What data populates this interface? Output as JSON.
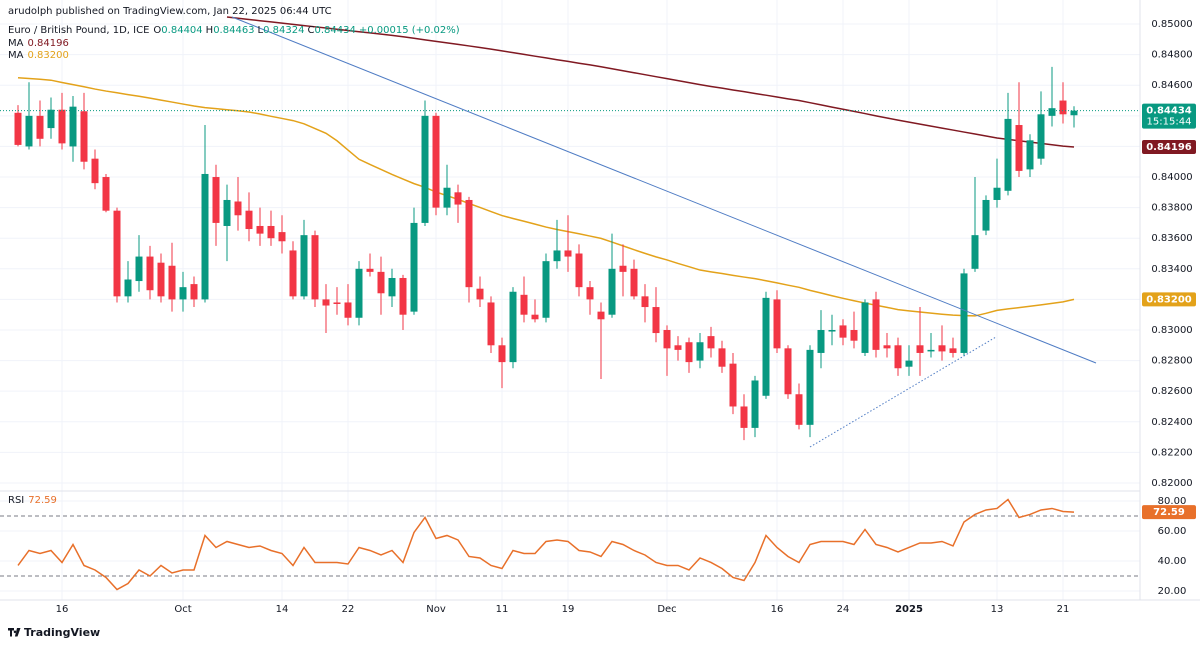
{
  "chart_data": {
    "type": "candlestick",
    "header": "arudolph published on TradingView.com, Jan 22, 2025 06:44 UTC",
    "title": "Euro / British Pound, 1D, ICE",
    "ohlc_keys": [
      "O",
      "H",
      "L",
      "C"
    ],
    "change": "+0.00015 (+0.02%)",
    "countdown": "15:15:44",
    "footer": "TradingView",
    "up_color": "#089981",
    "down_color": "#f23645",
    "grid": true,
    "categories": [
      null,
      null,
      null,
      null,
      "16",
      null,
      null,
      null,
      null,
      null,
      null,
      null,
      null,
      null,
      null,
      "Oct",
      null,
      null,
      null,
      null,
      null,
      null,
      null,
      null,
      "14",
      null,
      null,
      null,
      null,
      null,
      "22",
      null,
      null,
      null,
      null,
      null,
      null,
      null,
      "Nov",
      null,
      null,
      null,
      null,
      null,
      "11",
      null,
      null,
      null,
      null,
      null,
      "19",
      null,
      null,
      null,
      null,
      null,
      null,
      null,
      null,
      "Dec",
      null,
      null,
      null,
      null,
      null,
      null,
      null,
      null,
      null,
      "16",
      null,
      null,
      null,
      null,
      null,
      "24",
      null,
      null,
      null,
      null,
      null,
      "2025",
      null,
      null,
      null,
      null,
      null,
      null,
      null,
      "13",
      null,
      null,
      null,
      null,
      null,
      "21",
      null
    ],
    "open": [
      0.8442,
      0.842,
      0.844,
      0.8432,
      0.8444,
      0.842,
      0.8443,
      0.8412,
      0.84,
      0.8378,
      0.8322,
      0.8332,
      0.8348,
      0.8344,
      0.8342,
      0.832,
      0.833,
      0.832,
      0.84,
      0.8368,
      0.8384,
      0.8378,
      0.8368,
      0.8368,
      0.8364,
      0.8352,
      0.8322,
      0.8362,
      0.832,
      0.8318,
      0.8318,
      0.8308,
      0.834,
      0.8338,
      0.8322,
      0.8334,
      0.8312,
      0.837,
      0.844,
      0.838,
      0.839,
      0.8385,
      0.8327,
      0.8318,
      0.829,
      0.8279,
      0.8323,
      0.831,
      0.8308,
      0.8345,
      0.8352,
      0.835,
      0.8328,
      0.8312,
      0.831,
      0.8342,
      0.834,
      0.8322,
      0.8315,
      0.83,
      0.829,
      0.8292,
      0.828,
      0.8296,
      0.8288,
      0.8278,
      0.825,
      0.8236,
      0.8257,
      0.832,
      0.8288,
      0.8258,
      0.8238,
      0.8285,
      0.8299,
      0.8303,
      0.83,
      0.8285,
      0.832,
      0.829,
      0.829,
      0.8276,
      0.829,
      0.8286,
      0.829,
      0.8288,
      0.8285,
      0.834,
      0.8365,
      0.8385,
      0.8391,
      0.8434,
      0.8405,
      0.8412,
      0.844,
      0.845,
      0.84404
    ],
    "high": [
      0.8447,
      0.8462,
      0.845,
      0.8452,
      0.8455,
      0.8453,
      0.8455,
      0.8418,
      0.8402,
      0.838,
      0.8345,
      0.8362,
      0.8355,
      0.835,
      0.8357,
      0.8338,
      0.8335,
      0.8434,
      0.8408,
      0.8395,
      0.84,
      0.839,
      0.838,
      0.8378,
      0.8375,
      0.8358,
      0.8372,
      0.8365,
      0.833,
      0.8328,
      0.833,
      0.8345,
      0.835,
      0.8348,
      0.834,
      0.8336,
      0.838,
      0.845,
      0.8442,
      0.8408,
      0.8395,
      0.8387,
      0.8335,
      0.8322,
      0.8295,
      0.8328,
      0.8335,
      0.832,
      0.835,
      0.8372,
      0.8375,
      0.8356,
      0.8332,
      0.8318,
      0.8363,
      0.8356,
      0.8346,
      0.833,
      0.8328,
      0.8303,
      0.8296,
      0.8295,
      0.8298,
      0.8302,
      0.8293,
      0.8285,
      0.8258,
      0.827,
      0.8325,
      0.8326,
      0.829,
      0.8265,
      0.829,
      0.8313,
      0.831,
      0.8307,
      0.8312,
      0.832,
      0.8325,
      0.8298,
      0.8295,
      0.829,
      0.8315,
      0.8298,
      0.8303,
      0.8295,
      0.834,
      0.84,
      0.8388,
      0.8412,
      0.8455,
      0.8462,
      0.8428,
      0.8456,
      0.8472,
      0.8462,
      0.84463
    ],
    "low": [
      0.842,
      0.8418,
      0.842,
      0.8425,
      0.8418,
      0.841,
      0.8405,
      0.8392,
      0.8377,
      0.8318,
      0.8318,
      0.8325,
      0.832,
      0.8318,
      0.8312,
      0.8312,
      0.8315,
      0.8318,
      0.8355,
      0.8345,
      0.8365,
      0.8358,
      0.8355,
      0.8355,
      0.835,
      0.832,
      0.832,
      0.8315,
      0.8298,
      0.831,
      0.8303,
      0.8303,
      0.8335,
      0.831,
      0.8315,
      0.83,
      0.831,
      0.8368,
      0.8375,
      0.8375,
      0.837,
      0.8318,
      0.8315,
      0.8285,
      0.8262,
      0.8275,
      0.8305,
      0.8305,
      0.8305,
      0.834,
      0.8338,
      0.8322,
      0.831,
      0.8268,
      0.8308,
      0.8322,
      0.832,
      0.8305,
      0.8292,
      0.827,
      0.828,
      0.8272,
      0.8275,
      0.8282,
      0.8272,
      0.8245,
      0.8228,
      0.823,
      0.8255,
      0.8285,
      0.8255,
      0.8235,
      0.823,
      0.8275,
      0.829,
      0.829,
      0.8288,
      0.8283,
      0.8282,
      0.8282,
      0.827,
      0.827,
      0.827,
      0.8282,
      0.828,
      0.8282,
      0.8283,
      0.8338,
      0.8362,
      0.838,
      0.8388,
      0.84,
      0.84,
      0.8408,
      0.8433,
      0.8435,
      0.84324
    ],
    "close": [
      0.8421,
      0.844,
      0.8425,
      0.8444,
      0.8422,
      0.8446,
      0.841,
      0.8396,
      0.8378,
      0.8322,
      0.8333,
      0.8348,
      0.8326,
      0.8322,
      0.832,
      0.8328,
      0.832,
      0.8402,
      0.837,
      0.8385,
      0.8375,
      0.8366,
      0.8363,
      0.836,
      0.8358,
      0.8322,
      0.8362,
      0.832,
      0.8316,
      0.8317,
      0.8308,
      0.834,
      0.8338,
      0.8324,
      0.8334,
      0.831,
      0.837,
      0.844,
      0.838,
      0.8393,
      0.8382,
      0.8328,
      0.832,
      0.829,
      0.8279,
      0.8325,
      0.831,
      0.8307,
      0.8345,
      0.8352,
      0.8348,
      0.8328,
      0.832,
      0.8307,
      0.834,
      0.8338,
      0.8322,
      0.8315,
      0.8298,
      0.8288,
      0.8287,
      0.8279,
      0.8292,
      0.8288,
      0.8276,
      0.825,
      0.8236,
      0.8267,
      0.8321,
      0.8288,
      0.8258,
      0.8238,
      0.8287,
      0.83,
      0.83,
      0.8295,
      0.8293,
      0.8318,
      0.8287,
      0.8288,
      0.8275,
      0.828,
      0.8285,
      0.8287,
      0.8286,
      0.8285,
      0.8337,
      0.8362,
      0.8385,
      0.8393,
      0.8438,
      0.8404,
      0.8424,
      0.8441,
      0.8445,
      0.8441,
      0.84434
    ],
    "ylim": [
      0.81954,
      0.85105
    ],
    "yticks": [
      {
        "value": 0.82,
        "label": "0.82000"
      },
      {
        "value": 0.822,
        "label": "0.82200"
      },
      {
        "value": 0.824,
        "label": "0.82400"
      },
      {
        "value": 0.826,
        "label": "0.82600"
      },
      {
        "value": 0.828,
        "label": "0.82800"
      },
      {
        "value": 0.83,
        "label": "0.83000"
      },
      {
        "value": 0.832,
        "label": "0.83200"
      },
      {
        "value": 0.834,
        "label": "0.83400"
      },
      {
        "value": 0.836,
        "label": "0.83600"
      },
      {
        "value": 0.838,
        "label": "0.83800"
      },
      {
        "value": 0.84,
        "label": "0.84000"
      },
      {
        "value": 0.842,
        "label": "0.84200"
      },
      {
        "value": 0.844,
        "label": "0.84400"
      },
      {
        "value": 0.846,
        "label": "0.84600"
      },
      {
        "value": 0.848,
        "label": "0.84800"
      },
      {
        "value": 0.85,
        "label": "0.85000"
      }
    ],
    "series": [
      {
        "name": "MA",
        "color": "#801922",
        "last_label": "0.84196",
        "values": [
          null,
          null,
          null,
          null,
          null,
          null,
          null,
          null,
          null,
          null,
          null,
          null,
          null,
          null,
          null,
          null,
          null,
          null,
          null,
          0.85046,
          0.85038,
          0.8503,
          0.85022,
          0.85014,
          0.85006,
          0.84998,
          0.8499,
          0.84982,
          0.84974,
          0.84966,
          0.84958,
          0.8495,
          0.84942,
          0.84934,
          0.84926,
          0.84917,
          0.84907,
          0.84897,
          0.84887,
          0.84877,
          0.84867,
          0.84857,
          0.84847,
          0.84836,
          0.84825,
          0.84813,
          0.84802,
          0.8479,
          0.84779,
          0.84767,
          0.84756,
          0.84744,
          0.84733,
          0.84721,
          0.84708,
          0.84695,
          0.84682,
          0.84669,
          0.84656,
          0.84643,
          0.8463,
          0.84617,
          0.84604,
          0.84592,
          0.84581,
          0.84569,
          0.84558,
          0.84546,
          0.84535,
          0.84523,
          0.84511,
          0.845,
          0.84486,
          0.84472,
          0.84457,
          0.84443,
          0.84429,
          0.84415,
          0.844,
          0.84386,
          0.84372,
          0.84359,
          0.84346,
          0.84333,
          0.8432,
          0.84307,
          0.84294,
          0.84281,
          0.84268,
          0.84255,
          0.84246,
          0.84237,
          0.84228,
          0.8422,
          0.84211,
          0.84202,
          0.84196
        ]
      },
      {
        "name": "MA",
        "color": "#e3a21a",
        "last_label": "0.83200",
        "values": [
          0.84649,
          0.84644,
          0.84639,
          0.84633,
          0.84618,
          0.84604,
          0.8459,
          0.84575,
          0.84562,
          0.84551,
          0.84539,
          0.84528,
          0.84516,
          0.84503,
          0.8449,
          0.84477,
          0.84464,
          0.84454,
          0.84447,
          0.8444,
          0.84433,
          0.84425,
          0.84412,
          0.84397,
          0.84383,
          0.84369,
          0.84348,
          0.84317,
          0.84286,
          0.84237,
          0.84176,
          0.84116,
          0.84082,
          0.8405,
          0.84017,
          0.83987,
          0.83957,
          0.83933,
          0.83902,
          0.83878,
          0.83854,
          0.83827,
          0.83801,
          0.83774,
          0.83748,
          0.83729,
          0.83711,
          0.83692,
          0.83673,
          0.83657,
          0.83643,
          0.83629,
          0.83614,
          0.83599,
          0.83575,
          0.8355,
          0.83525,
          0.83501,
          0.83478,
          0.83458,
          0.83435,
          0.83414,
          0.83392,
          0.8338,
          0.83369,
          0.83357,
          0.83346,
          0.83336,
          0.83322,
          0.83308,
          0.83293,
          0.83279,
          0.83259,
          0.83242,
          0.83224,
          0.83207,
          0.83191,
          0.83176,
          0.83162,
          0.83148,
          0.83133,
          0.83125,
          0.83118,
          0.8311,
          0.83103,
          0.83097,
          0.83094,
          0.83092,
          0.83109,
          0.83128,
          0.83138,
          0.83146,
          0.83155,
          0.83164,
          0.83174,
          0.83184,
          0.832
        ]
      }
    ],
    "rsi": {
      "name": "RSI",
      "color": "#e8702a",
      "values": [
        37,
        47,
        45,
        47,
        39,
        51,
        37,
        34,
        29,
        21,
        25,
        34,
        30,
        37,
        32,
        34,
        34,
        57,
        49,
        53,
        51,
        49,
        50,
        47,
        45,
        37,
        49,
        39,
        39,
        39,
        38,
        49,
        47,
        44,
        47,
        39,
        59,
        69,
        55,
        57,
        54,
        43,
        42,
        37,
        35,
        47,
        45,
        45,
        53,
        54,
        53,
        47,
        46,
        43,
        53,
        51,
        47,
        44,
        39,
        37,
        37,
        34,
        42,
        39,
        35,
        29,
        27,
        39,
        57,
        49,
        43,
        39,
        51,
        53,
        53,
        53,
        51,
        61,
        51,
        49,
        46,
        49,
        52,
        52,
        53,
        50,
        66,
        71,
        74,
        75,
        81,
        69,
        71,
        74,
        75,
        73,
        72.59
      ],
      "ylim": [
        14,
        85.3
      ],
      "yticks": [
        {
          "value": 20,
          "label": "20.00"
        },
        {
          "value": 40,
          "label": "40.00"
        },
        {
          "value": 60,
          "label": "60.00"
        },
        {
          "value": 80,
          "label": "80.00"
        }
      ],
      "levels": [
        70,
        30
      ]
    }
  }
}
